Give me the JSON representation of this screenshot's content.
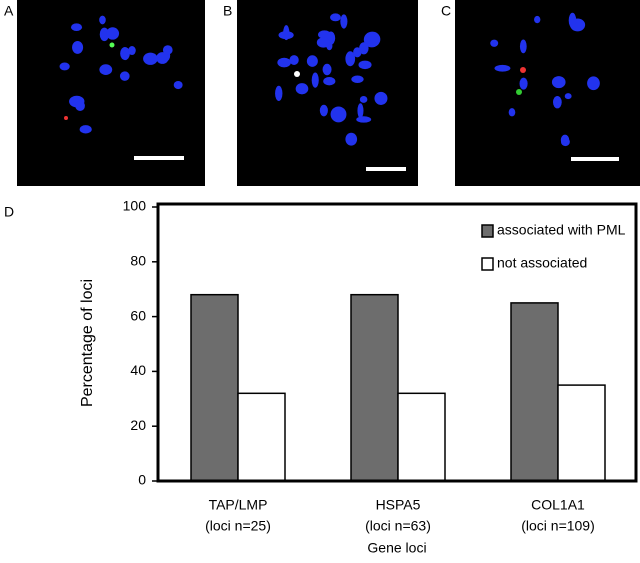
{
  "panel_labels": [
    "A",
    "B",
    "C",
    "D"
  ],
  "chart_data": {
    "type": "bar",
    "y_label": "Percentage of loci",
    "x_label": "Gene loci",
    "categories": [
      "TAP/LMP",
      "HSPA5",
      "COL1A1"
    ],
    "category_sublabels": [
      "(loci n=25)",
      "(loci n=63)",
      "(loci n=109)"
    ],
    "series": [
      {
        "name": "associated with PML",
        "color": "#6d6d6d",
        "values": [
          68,
          68,
          65
        ]
      },
      {
        "name": "not associated",
        "color": "#ffffff",
        "values": [
          32,
          32,
          35
        ]
      }
    ],
    "ylim": [
      0,
      100
    ],
    "yticks": [
      0,
      20,
      40,
      60,
      80,
      100
    ]
  }
}
